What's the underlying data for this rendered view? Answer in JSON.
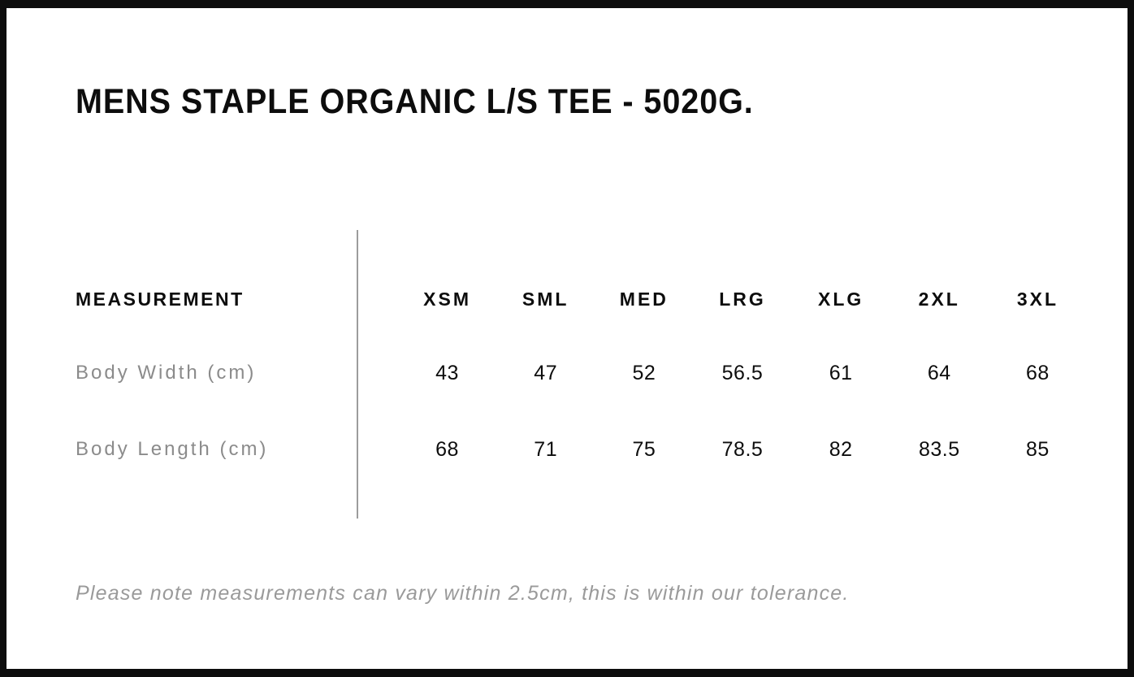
{
  "page": {
    "title": "MENS STAPLE ORGANIC L/S TEE - 5020G."
  },
  "table": {
    "label_header": "MEASUREMENT",
    "size_headers": [
      "XSM",
      "SML",
      "MED",
      "LRG",
      "XLG",
      "2XL",
      "3XL"
    ],
    "rows": [
      {
        "label": "Body Width (cm)",
        "values": [
          "43",
          "47",
          "52",
          "56.5",
          "61",
          "64",
          "68"
        ]
      },
      {
        "label": "Body Length (cm)",
        "values": [
          "68",
          "71",
          "75",
          "78.5",
          "82",
          "83.5",
          "85"
        ]
      }
    ]
  },
  "note": "Please note measurements can vary within 2.5cm, this is within our tolerance.",
  "colors": {
    "text": "#0d0d0d",
    "muted_label": "#8b8b8b",
    "note_text": "#9a9a9a",
    "divider": "#9c9c9c",
    "border": "#0d0d0d",
    "background": "#ffffff"
  }
}
